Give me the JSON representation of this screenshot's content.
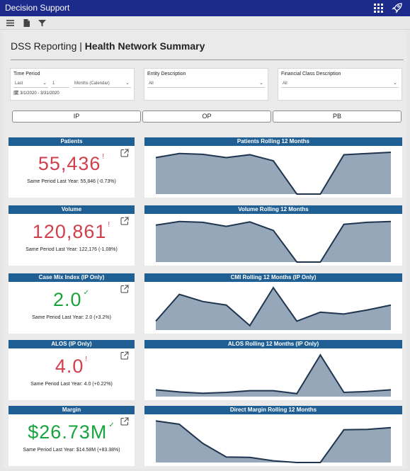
{
  "app": {
    "title": "Decision Support"
  },
  "header": {
    "prefix": "DSS Reporting |",
    "title": "Health Network Summary"
  },
  "filters": {
    "time_period": {
      "label": "Time Period",
      "mode": "Last",
      "count": "1",
      "unit": "Months (Calendar)",
      "range": "3/1/2020 - 3/31/2020"
    },
    "entity": {
      "label": "Entity Description",
      "value": "All"
    },
    "financial_class": {
      "label": "Financial Class Description",
      "value": "All"
    }
  },
  "tabs": [
    "IP",
    "OP",
    "PB"
  ],
  "colors": {
    "bar": "#1f5f94",
    "negative": "#d13f4d",
    "positive": "#18a33c",
    "area": "#95a7b8",
    "line": "#1f3550"
  },
  "kpis": [
    {
      "title": "Patients",
      "value": "55,436",
      "mark": "!",
      "trend": "negative",
      "footer": "Same Period Last Year: 55,846 (-0.73%)"
    },
    {
      "title": "Volume",
      "value": "120,861",
      "mark": "!",
      "trend": "negative",
      "footer": "Same Period Last Year: 122,176 (-1.08%)"
    },
    {
      "title": "Case Mix Index (IP Only)",
      "value": "2.0",
      "mark": "✓",
      "trend": "positive",
      "footer": "Same Period Last Year: 2.0 (+3.2%)"
    },
    {
      "title": "ALOS (IP Only)",
      "value": "4.0",
      "mark": "!",
      "trend": "negative",
      "footer": "Same Period Last Year: 4.0 (+0.22%)"
    },
    {
      "title": "Margin",
      "value": "$26.73M",
      "mark": "✓",
      "trend": "positive",
      "footer": "Same Period Last Year: $14.58M (+83.38%)"
    }
  ],
  "chart_data": [
    {
      "type": "area",
      "title": "Patients Rolling 12 Months",
      "x": [
        1,
        2,
        3,
        4,
        5,
        6,
        7,
        8,
        9,
        10,
        11
      ],
      "values": [
        0.9,
        1.0,
        0.98,
        0.9,
        0.97,
        0.82,
        0.0,
        0.0,
        0.97,
        1.0,
        1.03
      ],
      "ylim": [
        0,
        1.1
      ]
    },
    {
      "type": "area",
      "title": "Volume Rolling 12 Months",
      "x": [
        1,
        2,
        3,
        4,
        5,
        6,
        7,
        8,
        9,
        10,
        11
      ],
      "values": [
        0.91,
        1.0,
        0.98,
        0.88,
        0.99,
        0.78,
        0.0,
        0.0,
        0.93,
        0.98,
        1.0
      ],
      "ylim": [
        0,
        1.1
      ]
    },
    {
      "type": "area",
      "title": "CMI Rolling 12 Months (IP Only)",
      "x": [
        1,
        2,
        3,
        4,
        5,
        6,
        7,
        8,
        9,
        10,
        11
      ],
      "values": [
        0.2,
        0.8,
        0.64,
        0.56,
        0.1,
        0.95,
        0.2,
        0.4,
        0.36,
        0.45,
        0.56
      ],
      "ylim": [
        0,
        1
      ]
    },
    {
      "type": "area",
      "title": "ALOS Rolling 12 Months (IP Only)",
      "x": [
        1,
        2,
        3,
        4,
        5,
        6,
        7,
        8,
        9,
        10,
        11
      ],
      "values": [
        0.16,
        0.11,
        0.08,
        0.1,
        0.14,
        0.14,
        0.07,
        0.98,
        0.1,
        0.12,
        0.16
      ],
      "ylim": [
        0,
        1.05
      ]
    },
    {
      "type": "area",
      "title": "Direct Margin Rolling 12 Months",
      "x": [
        1,
        2,
        3,
        4,
        5,
        6,
        7,
        8,
        9,
        10,
        11
      ],
      "values": [
        0.98,
        0.9,
        0.45,
        0.13,
        0.12,
        0.04,
        0.0,
        0.0,
        0.77,
        0.78,
        0.82
      ],
      "ylim": [
        0,
        1.05
      ]
    }
  ]
}
